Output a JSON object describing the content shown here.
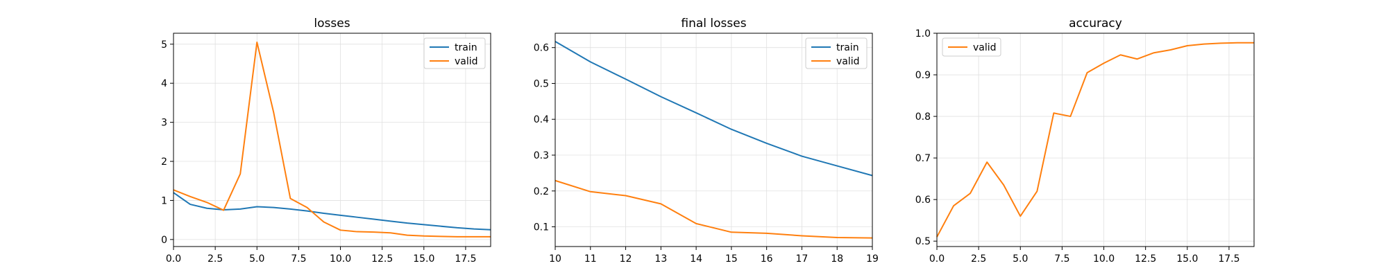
{
  "colors": {
    "train": "#1f77b4",
    "valid": "#ff7f0e"
  },
  "chart_data": [
    {
      "type": "line",
      "title": "losses",
      "xlabel": "",
      "ylabel": "",
      "xlim": [
        0,
        19
      ],
      "ylim": [
        -0.18,
        5.28
      ],
      "grid": true,
      "legend": "top-right",
      "xticks": [
        0.0,
        2.5,
        5.0,
        7.5,
        10.0,
        12.5,
        15.0,
        17.5
      ],
      "xtick_labels": [
        "0.0",
        "2.5",
        "5.0",
        "7.5",
        "10.0",
        "12.5",
        "15.0",
        "17.5"
      ],
      "yticks": [
        0,
        1,
        2,
        3,
        4,
        5
      ],
      "ytick_labels": [
        "0",
        "1",
        "2",
        "3",
        "4",
        "5"
      ],
      "series": [
        {
          "name": "train",
          "color": "#1f77b4",
          "x": [
            0,
            1,
            2,
            3,
            4,
            5,
            6,
            7,
            8,
            9,
            10,
            11,
            12,
            13,
            14,
            15,
            16,
            17,
            18,
            19
          ],
          "y": [
            1.2,
            0.9,
            0.8,
            0.76,
            0.78,
            0.84,
            0.82,
            0.78,
            0.73,
            0.67,
            0.62,
            0.57,
            0.52,
            0.47,
            0.42,
            0.38,
            0.34,
            0.3,
            0.27,
            0.25
          ]
        },
        {
          "name": "valid",
          "color": "#ff7f0e",
          "x": [
            0,
            1,
            2,
            3,
            4,
            5,
            6,
            7,
            8,
            9,
            10,
            11,
            12,
            13,
            14,
            15,
            16,
            17,
            18,
            19
          ],
          "y": [
            1.27,
            1.1,
            0.95,
            0.75,
            1.68,
            5.05,
            3.25,
            1.05,
            0.82,
            0.45,
            0.24,
            0.2,
            0.19,
            0.17,
            0.11,
            0.09,
            0.08,
            0.07,
            0.07,
            0.07
          ]
        }
      ]
    },
    {
      "type": "line",
      "title": "final losses",
      "xlabel": "",
      "ylabel": "",
      "xlim": [
        10,
        19
      ],
      "ylim": [
        0.045,
        0.64
      ],
      "grid": true,
      "legend": "top-right",
      "xticks": [
        10,
        11,
        12,
        13,
        14,
        15,
        16,
        17,
        18,
        19
      ],
      "xtick_labels": [
        "10",
        "11",
        "12",
        "13",
        "14",
        "15",
        "16",
        "17",
        "18",
        "19"
      ],
      "yticks": [
        0.1,
        0.2,
        0.3,
        0.4,
        0.5,
        0.6
      ],
      "ytick_labels": [
        "0.1",
        "0.2",
        "0.3",
        "0.4",
        "0.5",
        "0.6"
      ],
      "series": [
        {
          "name": "train",
          "color": "#1f77b4",
          "x": [
            10,
            11,
            12,
            13,
            14,
            15,
            16,
            17,
            18,
            19
          ],
          "y": [
            0.617,
            0.56,
            0.512,
            0.463,
            0.418,
            0.372,
            0.333,
            0.297,
            0.27,
            0.243
          ]
        },
        {
          "name": "valid",
          "color": "#ff7f0e",
          "x": [
            10,
            11,
            12,
            13,
            14,
            15,
            16,
            17,
            18,
            19
          ],
          "y": [
            0.229,
            0.198,
            0.187,
            0.164,
            0.109,
            0.085,
            0.082,
            0.075,
            0.07,
            0.069
          ]
        }
      ]
    },
    {
      "type": "line",
      "title": "accuracy",
      "xlabel": "",
      "ylabel": "",
      "xlim": [
        0,
        19
      ],
      "ylim": [
        0.487,
        1.0
      ],
      "grid": true,
      "legend": "top-left",
      "xticks": [
        0.0,
        2.5,
        5.0,
        7.5,
        10.0,
        12.5,
        15.0,
        17.5
      ],
      "xtick_labels": [
        "0.0",
        "2.5",
        "5.0",
        "7.5",
        "10.0",
        "12.5",
        "15.0",
        "17.5"
      ],
      "yticks": [
        0.5,
        0.6,
        0.7,
        0.8,
        0.9,
        1.0
      ],
      "ytick_labels": [
        "0.5",
        "0.6",
        "0.7",
        "0.8",
        "0.9",
        "1.0"
      ],
      "series": [
        {
          "name": "valid",
          "color": "#ff7f0e",
          "x": [
            0,
            1,
            2,
            3,
            4,
            5,
            6,
            7,
            8,
            9,
            10,
            11,
            12,
            13,
            14,
            15,
            16,
            17,
            18,
            19
          ],
          "y": [
            0.51,
            0.585,
            0.615,
            0.69,
            0.635,
            0.56,
            0.62,
            0.808,
            0.8,
            0.905,
            0.928,
            0.948,
            0.938,
            0.953,
            0.96,
            0.97,
            0.974,
            0.976,
            0.977,
            0.977
          ]
        }
      ]
    }
  ]
}
